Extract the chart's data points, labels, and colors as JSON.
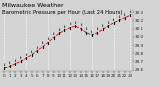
{
  "title": "Milwaukee Weather",
  "subtitle": "Barometric Pressure per Hour (Last 24 Hours)",
  "bg_color": "#d4d4d4",
  "plot_bg": "#d4d4d4",
  "line_color": "#cc0000",
  "marker_color": "#111111",
  "grid_color": "#ffffff",
  "hours": [
    0,
    1,
    2,
    3,
    4,
    5,
    6,
    7,
    8,
    9,
    10,
    11,
    12,
    13,
    14,
    15,
    16,
    17,
    18,
    19,
    20,
    21,
    22,
    23
  ],
  "pressure": [
    29.62,
    29.64,
    29.67,
    29.7,
    29.74,
    29.78,
    29.83,
    29.88,
    29.93,
    29.99,
    30.04,
    30.08,
    30.11,
    30.13,
    30.1,
    30.05,
    30.02,
    30.05,
    30.09,
    30.13,
    30.17,
    30.2,
    30.23,
    30.26
  ],
  "ylim": [
    29.58,
    30.32
  ],
  "yticks": [
    29.6,
    29.7,
    29.8,
    29.9,
    30.0,
    30.1,
    30.2,
    30.3
  ],
  "ytick_labels": [
    "29.6",
    "29.7",
    "29.8",
    "29.9",
    "30.0",
    "30.1",
    "30.2",
    "30.3"
  ],
  "title_fontsize": 4.5,
  "tick_fontsize": 3.0,
  "line_width": 0.6,
  "figsize": [
    1.6,
    0.87
  ],
  "dpi": 100
}
